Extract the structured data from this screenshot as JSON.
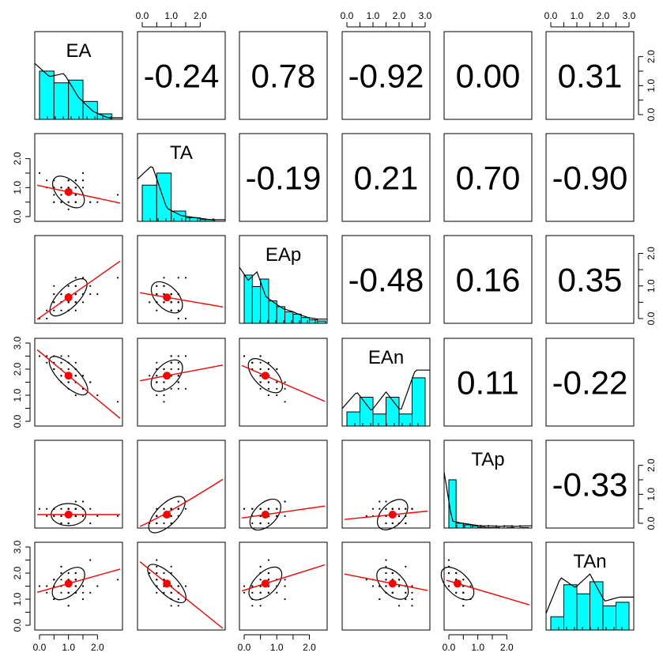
{
  "chart_data": {
    "type": "scatter",
    "variables": [
      "EA",
      "TA",
      "EAp",
      "EAn",
      "TAp",
      "TAn"
    ],
    "correlations": [
      [
        "",
        "-0.24",
        "0.78",
        "-0.92",
        "0.00",
        "0.31"
      ],
      [
        "",
        "",
        "-0.19",
        "0.21",
        "0.70",
        "-0.90"
      ],
      [
        "",
        "",
        "",
        "-0.48",
        "0.16",
        "0.35"
      ],
      [
        "",
        "",
        "",
        "",
        "0.11",
        "-0.22"
      ],
      [
        "",
        "",
        "",
        "",
        "",
        "-0.33"
      ],
      [
        "",
        "",
        "",
        "",
        "",
        ""
      ]
    ],
    "axis_tick_labels": [
      "0.0",
      "1.0",
      "2.0",
      "3.0"
    ],
    "ranges": {
      "EA": [
        0,
        2.7
      ],
      "TA": [
        0,
        2.7
      ],
      "EAp": [
        0,
        2.4
      ],
      "EAn": [
        0,
        3.0
      ],
      "TAp": [
        0,
        2.7
      ],
      "TAn": [
        0,
        3.0
      ]
    },
    "histograms": {
      "EA": {
        "bins": [
          0,
          0.5,
          1.0,
          1.5,
          2.0,
          2.5,
          3.0
        ],
        "counts": [
          0.7,
          0.53,
          0.57,
          0.26,
          0.08,
          0.0
        ]
      },
      "TA": {
        "bins": [
          0,
          0.5,
          1.0,
          1.5,
          2.0,
          2.5,
          3.0
        ],
        "counts": [
          0.6,
          0.8,
          0.17,
          0.06,
          0.03,
          0.0
        ]
      },
      "EAp": {
        "bins": [
          0,
          0.25,
          0.5,
          0.75,
          1.0,
          1.25,
          1.5,
          1.75,
          2.0,
          2.25,
          2.5
        ],
        "counts": [
          0.84,
          0.64,
          0.77,
          0.39,
          0.29,
          0.2,
          0.16,
          0.1,
          0.06,
          0.04
        ]
      },
      "EAn": {
        "bins": [
          0,
          0.5,
          1.0,
          1.5,
          2.0,
          2.5,
          3.0
        ],
        "counts": [
          0.27,
          0.55,
          0.23,
          0.55,
          0.23,
          0.92
        ]
      },
      "TAp": {
        "bins": [
          0,
          0.25,
          0.5,
          0.75,
          1.0,
          1.25,
          1.5,
          1.75,
          2.0,
          2.25,
          2.5,
          2.75
        ],
        "counts": [
          0.9,
          0.09,
          0.06,
          0.04,
          0.02,
          0.01,
          0.01,
          0.0,
          0.01,
          0.0,
          0.01
        ]
      },
      "TAn": {
        "bins": [
          0,
          0.5,
          1.0,
          1.5,
          2.0,
          2.5,
          3.0
        ],
        "counts": [
          0.22,
          0.75,
          0.6,
          0.8,
          0.4,
          0.46
        ]
      }
    },
    "points_color": "#000000",
    "fit_color": "#ff0000",
    "hist_color": "#00ffff"
  }
}
